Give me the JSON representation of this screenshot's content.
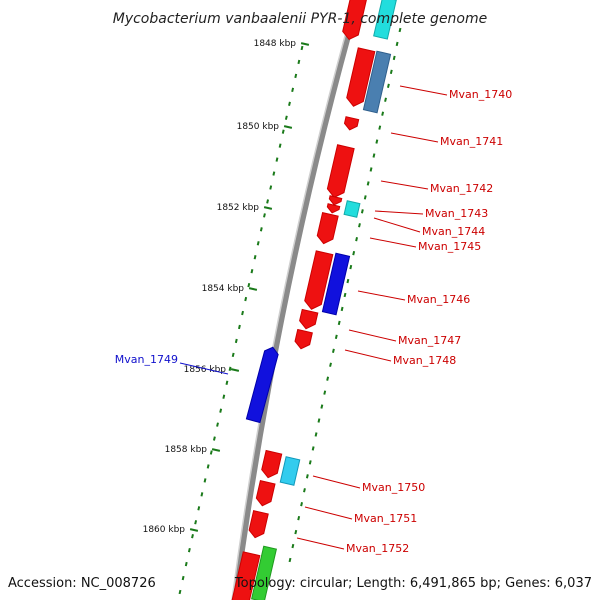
{
  "title": "Mycobacterium vanbaalenii PYR-1, complete genome",
  "footer": {
    "accession": "Accession: NC_008726",
    "summary": "Topology: circular; Length: 6,491,865 bp; Genes: 6,037"
  },
  "ticks": [
    "1848 kbp",
    "1850 kbp",
    "1852 kbp",
    "1854 kbp",
    "1856 kbp",
    "1858 kbp",
    "1860 kbp"
  ],
  "gene_labels": [
    {
      "text": "Mvan_1740",
      "strand": "forward"
    },
    {
      "text": "Mvan_1741",
      "strand": "forward"
    },
    {
      "text": "Mvan_1742",
      "strand": "forward"
    },
    {
      "text": "Mvan_1743",
      "strand": "forward"
    },
    {
      "text": "Mvan_1744",
      "strand": "forward"
    },
    {
      "text": "Mvan_1745",
      "strand": "forward"
    },
    {
      "text": "Mvan_1746",
      "strand": "forward"
    },
    {
      "text": "Mvan_1747",
      "strand": "forward"
    },
    {
      "text": "Mvan_1748",
      "strand": "forward"
    },
    {
      "text": "Mvan_1749",
      "strand": "reverse"
    },
    {
      "text": "Mvan_1750",
      "strand": "forward"
    },
    {
      "text": "Mvan_1751",
      "strand": "forward"
    },
    {
      "text": "Mvan_1752",
      "strand": "forward"
    }
  ],
  "colors": {
    "cds_red": "#ee1111",
    "rna_cyan": "#22dddd",
    "steel": "#4a7fb0",
    "reverse_blue": "#1111dd",
    "green": "#33cc33",
    "label_red": "#cc0000",
    "label_blue": "#1111cc",
    "tick_green": "#1a7a1a",
    "backbone": "#8a8a8a"
  }
}
